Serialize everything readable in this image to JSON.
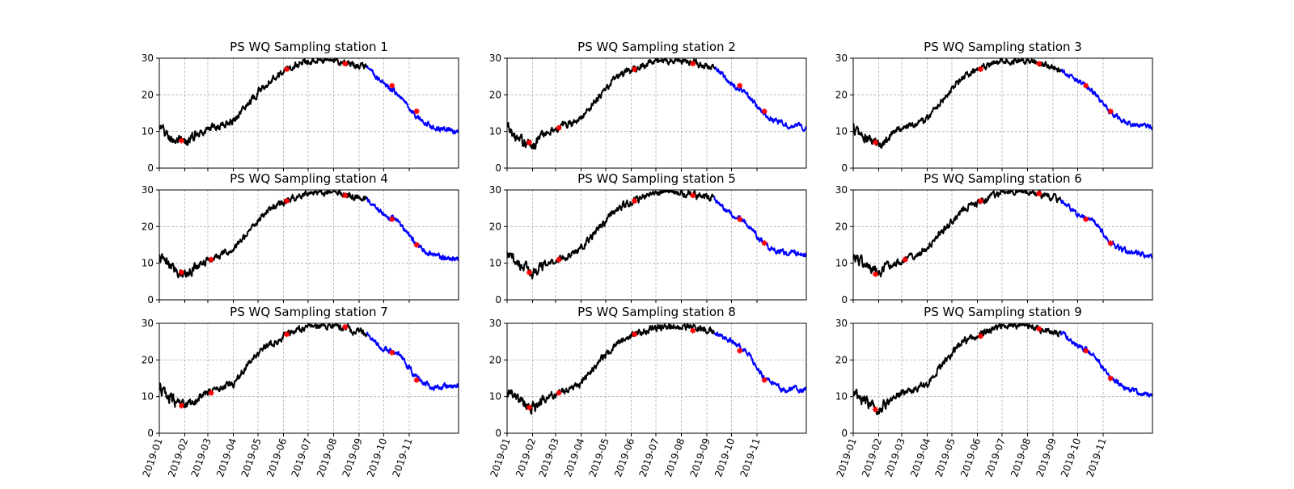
{
  "chart_data": {
    "type": "line",
    "layout": "3x3 grid of subplots, shared x-axis per column",
    "grid": true,
    "xlim": [
      "2019-01-01",
      "2019-12-31"
    ],
    "ylim": [
      0,
      30
    ],
    "ytick_labels": [
      "0",
      "10",
      "20",
      "30"
    ],
    "xtick_labels": [
      "2019-01",
      "2019-02",
      "2019-03",
      "2019-04",
      "2019-05",
      "2019-06",
      "2019-07",
      "2019-08",
      "2019-09",
      "2019-10",
      "2019-11"
    ],
    "xtick_dates": [
      "2019-01-01",
      "2019-02-01",
      "2019-03-01",
      "2019-04-01",
      "2019-05-01",
      "2019-06-01",
      "2019-07-01",
      "2019-08-01",
      "2019-09-01",
      "2019-10-01",
      "2019-11-01"
    ],
    "colors": {
      "observed": "#000000",
      "later_segment": "#0000ff",
      "sample_marker": "#ff0000"
    },
    "series_switch_date": "2019-09-10",
    "panels": [
      {
        "title": "PS WQ Sampling station 1",
        "profile": {
          "x": [
            "2019-01-01",
            "2019-01-15",
            "2019-02-01",
            "2019-02-20",
            "2019-03-15",
            "2019-04-01",
            "2019-04-20",
            "2019-05-15",
            "2019-06-05",
            "2019-07-01",
            "2019-08-01",
            "2019-08-20",
            "2019-09-10",
            "2019-10-01",
            "2019-10-20",
            "2019-11-10",
            "2019-12-01",
            "2019-12-31"
          ],
          "y": [
            11,
            8,
            6.5,
            10,
            11.5,
            13,
            18,
            24,
            27,
            29.5,
            29.5,
            28,
            27.5,
            23,
            20,
            14,
            11,
            10
          ]
        },
        "markers": {
          "x": [
            "2019-01-28",
            "2019-06-05",
            "2019-08-15",
            "2019-10-11",
            "2019-11-10"
          ],
          "y": [
            7.5,
            27,
            28.5,
            22.5,
            15.5
          ]
        }
      },
      {
        "title": "PS WQ Sampling station 2",
        "profile": {
          "x": [
            "2019-01-01",
            "2019-01-15",
            "2019-02-01",
            "2019-02-20",
            "2019-03-15",
            "2019-04-01",
            "2019-04-20",
            "2019-05-15",
            "2019-06-05",
            "2019-07-01",
            "2019-08-01",
            "2019-08-20",
            "2019-09-10",
            "2019-10-01",
            "2019-10-20",
            "2019-11-10",
            "2019-12-01",
            "2019-12-31"
          ],
          "y": [
            11,
            7.5,
            6.5,
            10,
            12,
            13.5,
            19,
            25,
            27,
            29.5,
            29.5,
            28.5,
            27.5,
            23,
            20,
            14.5,
            12,
            11
          ]
        },
        "markers": {
          "x": [
            "2019-01-28",
            "2019-03-05",
            "2019-06-05",
            "2019-08-15",
            "2019-10-11",
            "2019-11-10"
          ],
          "y": [
            7,
            11,
            27,
            28.5,
            22.5,
            15.5
          ]
        }
      },
      {
        "title": "PS WQ Sampling station 3",
        "profile": {
          "x": [
            "2019-01-01",
            "2019-01-15",
            "2019-02-01",
            "2019-02-20",
            "2019-03-15",
            "2019-04-01",
            "2019-04-20",
            "2019-05-15",
            "2019-06-05",
            "2019-07-01",
            "2019-08-01",
            "2019-08-20",
            "2019-09-10",
            "2019-10-01",
            "2019-10-20",
            "2019-11-10",
            "2019-12-01",
            "2019-12-31"
          ],
          "y": [
            11,
            8,
            6.5,
            10,
            12,
            13.5,
            19,
            25,
            27,
            29.5,
            29.5,
            28.5,
            27,
            24,
            21,
            15,
            12,
            11
          ]
        },
        "markers": {
          "x": [
            "2019-01-28",
            "2019-06-05",
            "2019-08-15",
            "2019-10-11",
            "2019-11-10"
          ],
          "y": [
            7,
            27,
            28.5,
            22.5,
            15.5
          ]
        }
      },
      {
        "title": "PS WQ Sampling station 4",
        "profile": {
          "x": [
            "2019-01-01",
            "2019-01-15",
            "2019-02-01",
            "2019-02-20",
            "2019-03-15",
            "2019-04-01",
            "2019-04-20",
            "2019-05-15",
            "2019-06-05",
            "2019-07-01",
            "2019-08-01",
            "2019-08-20",
            "2019-09-10",
            "2019-10-01",
            "2019-10-20",
            "2019-11-10",
            "2019-12-01",
            "2019-12-31"
          ],
          "y": [
            11.5,
            9,
            7,
            10,
            12,
            13.5,
            19,
            25,
            27,
            29.5,
            29.5,
            28.5,
            27.5,
            23,
            21.5,
            15,
            12,
            11
          ]
        },
        "markers": {
          "x": [
            "2019-01-28",
            "2019-03-05",
            "2019-06-05",
            "2019-08-15",
            "2019-10-11",
            "2019-11-10"
          ],
          "y": [
            7.5,
            11,
            27,
            28.5,
            22,
            15
          ]
        }
      },
      {
        "title": "PS WQ Sampling station 5",
        "profile": {
          "x": [
            "2019-01-01",
            "2019-01-15",
            "2019-02-01",
            "2019-02-20",
            "2019-03-15",
            "2019-04-01",
            "2019-04-20",
            "2019-05-15",
            "2019-06-05",
            "2019-07-01",
            "2019-08-01",
            "2019-08-20",
            "2019-09-10",
            "2019-10-01",
            "2019-10-20",
            "2019-11-10",
            "2019-12-01",
            "2019-12-31"
          ],
          "y": [
            12,
            10,
            7.5,
            10,
            12,
            14,
            19,
            25,
            27,
            29.5,
            29.5,
            28.5,
            27.5,
            23,
            21,
            15,
            13,
            12.5
          ]
        },
        "markers": {
          "x": [
            "2019-01-28",
            "2019-03-05",
            "2019-06-05",
            "2019-08-15",
            "2019-10-11",
            "2019-11-10"
          ],
          "y": [
            7.5,
            11,
            27,
            28.5,
            22,
            15.5
          ]
        }
      },
      {
        "title": "PS WQ Sampling station 6",
        "profile": {
          "x": [
            "2019-01-01",
            "2019-01-15",
            "2019-02-01",
            "2019-02-20",
            "2019-03-15",
            "2019-04-01",
            "2019-04-20",
            "2019-05-15",
            "2019-06-05",
            "2019-07-01",
            "2019-08-01",
            "2019-08-20",
            "2019-09-10",
            "2019-10-01",
            "2019-10-20",
            "2019-11-10",
            "2019-12-01",
            "2019-12-31"
          ],
          "y": [
            12,
            9.5,
            7,
            10,
            12,
            14,
            19,
            25,
            27,
            29.5,
            29.5,
            28.5,
            27.5,
            23,
            21.5,
            15.5,
            13,
            12
          ]
        },
        "markers": {
          "x": [
            "2019-01-28",
            "2019-03-05",
            "2019-06-05",
            "2019-08-15",
            "2019-10-11",
            "2019-11-10"
          ],
          "y": [
            7,
            11,
            27,
            29,
            22,
            15.5
          ]
        }
      },
      {
        "title": "PS WQ Sampling station 7",
        "profile": {
          "x": [
            "2019-01-01",
            "2019-01-15",
            "2019-02-01",
            "2019-02-20",
            "2019-03-15",
            "2019-04-01",
            "2019-04-20",
            "2019-05-15",
            "2019-06-05",
            "2019-07-01",
            "2019-08-01",
            "2019-08-20",
            "2019-09-10",
            "2019-10-01",
            "2019-10-20",
            "2019-11-10",
            "2019-12-01",
            "2019-12-31"
          ],
          "y": [
            12.5,
            9,
            7,
            10,
            12.5,
            13.5,
            19,
            24.5,
            27,
            29.5,
            29.5,
            28.5,
            27,
            23,
            21.5,
            15,
            12.5,
            13
          ]
        },
        "markers": {
          "x": [
            "2019-01-28",
            "2019-03-05",
            "2019-06-05",
            "2019-08-15",
            "2019-10-11",
            "2019-11-10"
          ],
          "y": [
            7.5,
            11,
            27,
            29,
            22,
            14.5
          ]
        }
      },
      {
        "title": "PS WQ Sampling station 8",
        "profile": {
          "x": [
            "2019-01-01",
            "2019-01-15",
            "2019-02-01",
            "2019-02-20",
            "2019-03-15",
            "2019-04-01",
            "2019-04-20",
            "2019-05-15",
            "2019-06-05",
            "2019-07-01",
            "2019-08-01",
            "2019-08-20",
            "2019-09-10",
            "2019-10-01",
            "2019-10-20",
            "2019-11-10",
            "2019-12-01",
            "2019-12-31"
          ],
          "y": [
            11.5,
            9,
            6.5,
            10,
            12,
            13.5,
            19,
            24.5,
            27,
            29,
            29.5,
            28.5,
            27.5,
            25,
            22,
            15,
            12,
            12
          ]
        },
        "markers": {
          "x": [
            "2019-01-28",
            "2019-03-05",
            "2019-06-05",
            "2019-08-15",
            "2019-10-11",
            "2019-11-10"
          ],
          "y": [
            7,
            11,
            27,
            28,
            22.5,
            14.5
          ]
        }
      },
      {
        "title": "PS WQ Sampling station 9",
        "profile": {
          "x": [
            "2019-01-01",
            "2019-01-15",
            "2019-02-01",
            "2019-02-20",
            "2019-03-15",
            "2019-04-01",
            "2019-04-20",
            "2019-05-15",
            "2019-06-05",
            "2019-07-01",
            "2019-08-01",
            "2019-08-20",
            "2019-09-10",
            "2019-10-01",
            "2019-10-20",
            "2019-11-10",
            "2019-12-01",
            "2019-12-31"
          ],
          "y": [
            11,
            8.5,
            6.5,
            10,
            12,
            13.5,
            19,
            25,
            27,
            29.5,
            29.5,
            28,
            27.5,
            24,
            21.5,
            15,
            12,
            10.5
          ]
        },
        "markers": {
          "x": [
            "2019-01-28",
            "2019-06-05",
            "2019-08-15",
            "2019-10-11",
            "2019-11-10"
          ],
          "y": [
            6.5,
            26.5,
            28.5,
            22.5,
            15
          ]
        }
      }
    ]
  }
}
